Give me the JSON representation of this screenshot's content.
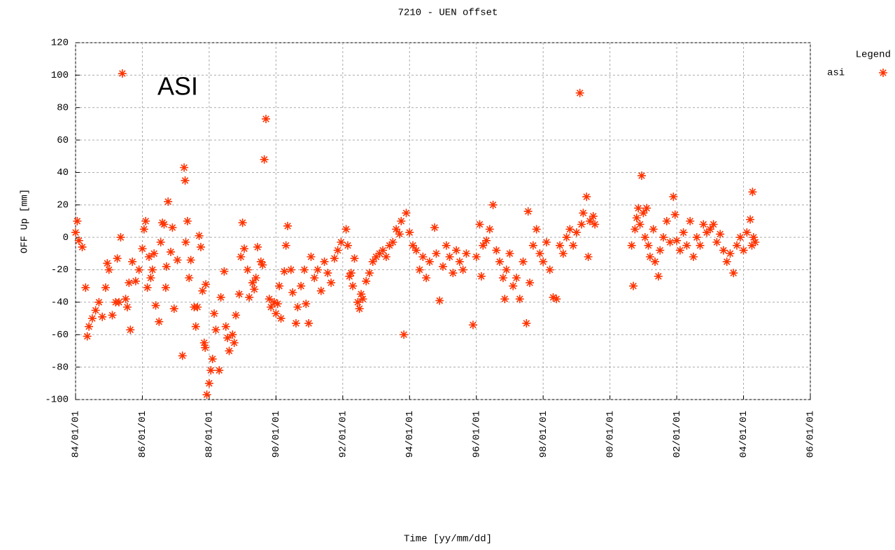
{
  "chart_data": {
    "type": "scatter",
    "title": "7210 - UEN offset",
    "x_label": "Time [yy/mm/dd]",
    "y_label": "OFF Up [mm]",
    "legend_title": "Legend",
    "annotation": "ASI",
    "grid": true,
    "legend": "top-right",
    "xlim": [
      1984,
      2006
    ],
    "ylim": [
      -100,
      120
    ],
    "yticks": [
      -100,
      -80,
      -60,
      -40,
      -20,
      0,
      20,
      40,
      60,
      80,
      100,
      120
    ],
    "xticks": [
      {
        "value": 1984,
        "label": "84/01/01"
      },
      {
        "value": 1986,
        "label": "86/01/01"
      },
      {
        "value": 1988,
        "label": "88/01/01"
      },
      {
        "value": 1990,
        "label": "90/01/01"
      },
      {
        "value": 1992,
        "label": "92/01/01"
      },
      {
        "value": 1994,
        "label": "94/01/01"
      },
      {
        "value": 1996,
        "label": "96/01/01"
      },
      {
        "value": 1998,
        "label": "98/01/01"
      },
      {
        "value": 2000,
        "label": "00/01/01"
      },
      {
        "value": 2002,
        "label": "02/01/01"
      },
      {
        "value": 2004,
        "label": "04/01/01"
      },
      {
        "value": 2006,
        "label": "06/01/01"
      }
    ],
    "series": [
      {
        "name": "asi",
        "color": "#ff3300",
        "x": [
          1984.0,
          1984.05,
          1984.1,
          1984.2,
          1984.3,
          1984.35,
          1984.4,
          1984.5,
          1984.6,
          1984.7,
          1984.8,
          1984.9,
          1984.95,
          1985.0,
          1985.1,
          1985.2,
          1985.25,
          1985.3,
          1985.35,
          1985.4,
          1985.5,
          1985.55,
          1985.6,
          1985.64,
          1985.7,
          1985.8,
          1985.9,
          1986.0,
          1986.05,
          1986.1,
          1986.15,
          1986.2,
          1986.25,
          1986.3,
          1986.35,
          1986.4,
          1986.5,
          1986.55,
          1986.6,
          1986.65,
          1986.7,
          1986.72,
          1986.77,
          1986.85,
          1986.9,
          1986.95,
          1987.05,
          1987.2,
          1987.25,
          1987.28,
          1987.3,
          1987.35,
          1987.4,
          1987.45,
          1987.55,
          1987.6,
          1987.65,
          1987.7,
          1987.75,
          1987.8,
          1987.85,
          1987.88,
          1987.9,
          1987.93,
          1988.0,
          1988.05,
          1988.1,
          1988.15,
          1988.2,
          1988.3,
          1988.35,
          1988.45,
          1988.5,
          1988.55,
          1988.6,
          1988.7,
          1988.75,
          1988.8,
          1988.9,
          1988.95,
          1989.0,
          1989.05,
          1989.15,
          1989.2,
          1989.3,
          1989.35,
          1989.4,
          1989.45,
          1989.55,
          1989.6,
          1989.65,
          1989.7,
          1989.8,
          1989.85,
          1989.95,
          1990.0,
          1990.05,
          1990.1,
          1990.15,
          1990.25,
          1990.3,
          1990.35,
          1990.45,
          1990.5,
          1990.6,
          1990.65,
          1990.75,
          1990.85,
          1990.9,
          1990.98,
          1991.05,
          1991.15,
          1991.25,
          1991.35,
          1991.45,
          1991.55,
          1991.65,
          1991.75,
          1991.85,
          1991.95,
          1992.1,
          1992.15,
          1992.2,
          1992.25,
          1992.3,
          1992.35,
          1992.45,
          1992.5,
          1992.55,
          1992.6,
          1992.7,
          1992.8,
          1992.9,
          1993.0,
          1993.1,
          1993.2,
          1993.3,
          1993.4,
          1993.5,
          1993.6,
          1993.7,
          1993.75,
          1993.83,
          1993.9,
          1994.0,
          1994.1,
          1994.2,
          1994.3,
          1994.4,
          1994.5,
          1994.6,
          1994.75,
          1994.8,
          1994.9,
          1995.0,
          1995.1,
          1995.2,
          1995.3,
          1995.4,
          1995.5,
          1995.6,
          1995.7,
          1995.9,
          1996.0,
          1996.1,
          1996.15,
          1996.2,
          1996.3,
          1996.4,
          1996.5,
          1996.6,
          1996.7,
          1996.8,
          1996.85,
          1996.9,
          1997.0,
          1997.1,
          1997.2,
          1997.3,
          1997.4,
          1997.5,
          1997.55,
          1997.6,
          1997.7,
          1997.8,
          1997.9,
          1998.0,
          1998.1,
          1998.2,
          1998.3,
          1998.4,
          1998.5,
          1998.6,
          1998.7,
          1998.8,
          1998.9,
          1999.0,
          1999.1,
          1999.15,
          1999.2,
          1999.3,
          1999.35,
          1999.4,
          1999.5,
          1999.55,
          2000.65,
          2000.7,
          2000.75,
          2000.8,
          2000.85,
          2000.9,
          2000.95,
          2001.0,
          2001.05,
          2001.1,
          2001.15,
          2001.2,
          2001.3,
          2001.35,
          2001.45,
          2001.5,
          2001.6,
          2001.7,
          2001.8,
          2001.9,
          2001.95,
          2002.0,
          2002.1,
          2002.2,
          2002.3,
          2002.4,
          2002.5,
          2002.6,
          2002.7,
          2002.8,
          2002.9,
          2003.0,
          2003.1,
          2003.2,
          2003.3,
          2003.4,
          2003.5,
          2003.6,
          2003.7,
          2003.8,
          2003.9,
          2004.0,
          2004.1,
          2004.2,
          2004.25,
          2004.27,
          2004.3,
          2004.35
        ],
        "values": [
          3,
          10,
          -2,
          -6,
          -31,
          -61,
          -55,
          -50,
          -45,
          -40,
          -49,
          -31,
          -16,
          -20,
          -48,
          -40,
          -13,
          -40,
          0,
          101,
          -38,
          -43,
          -28,
          -57,
          -15,
          -27,
          -20,
          -7,
          5,
          10,
          -31,
          -12,
          -25,
          -20,
          -10,
          -42,
          -52,
          -3,
          9,
          8,
          -31,
          -18,
          22,
          -9,
          6,
          -44,
          -14,
          -73,
          43,
          35,
          -3,
          10,
          -25,
          -14,
          -43,
          -55,
          -43,
          1,
          -6,
          -33,
          -65,
          -68,
          -29,
          -97,
          -90,
          -82,
          -75,
          -47,
          -57,
          -82,
          -37,
          -21,
          -55,
          -62,
          -70,
          -60,
          -65,
          -48,
          -35,
          -12,
          9,
          -7,
          -20,
          -37,
          -28,
          -32,
          -25,
          -6,
          -15,
          -17,
          48,
          73,
          -38,
          -43,
          -40,
          -47,
          -41,
          -30,
          -50,
          -21,
          -5,
          7,
          -20,
          -34,
          -53,
          -43,
          -30,
          -20,
          -41,
          -53,
          -12,
          -25,
          -20,
          -33,
          -15,
          -22,
          -28,
          -13,
          -8,
          -3,
          5,
          -5,
          -24,
          -22,
          -30,
          -13,
          -40,
          -44,
          -35,
          -38,
          -27,
          -22,
          -15,
          -12,
          -10,
          -8,
          -12,
          -5,
          -3,
          5,
          2,
          10,
          -60,
          15,
          3,
          -5,
          -8,
          -20,
          -12,
          -25,
          -15,
          6,
          -10,
          -39,
          -18,
          -5,
          -12,
          -22,
          -8,
          -15,
          -20,
          -10,
          -54,
          -12,
          8,
          -24,
          -5,
          -2,
          5,
          20,
          -8,
          -15,
          -25,
          -38,
          -20,
          -10,
          -30,
          -25,
          -38,
          -15,
          -53,
          16,
          -28,
          -5,
          5,
          -10,
          -15,
          -3,
          -20,
          -37,
          -38,
          -5,
          -10,
          0,
          5,
          -5,
          3,
          89,
          8,
          15,
          25,
          -12,
          10,
          13,
          8,
          -5,
          -30,
          5,
          12,
          18,
          8,
          38,
          15,
          0,
          18,
          -5,
          -12,
          5,
          -15,
          -24,
          -8,
          0,
          10,
          -3,
          25,
          14,
          -2,
          -8,
          3,
          -5,
          10,
          -12,
          0,
          -5,
          8,
          3,
          5,
          8,
          -3,
          2,
          -8,
          -15,
          -10,
          -22,
          -5,
          0,
          -8,
          3,
          11,
          -5,
          28,
          0,
          -3
        ]
      }
    ]
  }
}
